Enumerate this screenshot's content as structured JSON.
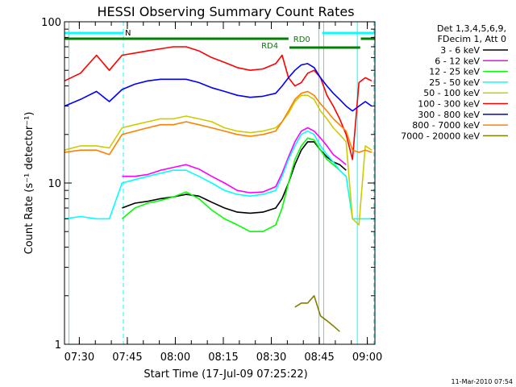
{
  "chart_data": {
    "type": "line",
    "title": "HESSI Observing Summary Count Rates",
    "xlabel": "Start Time (17-Jul-09 07:25:22)",
    "ylabel": "Count Rate (s⁻¹ detector⁻¹)",
    "x_ticks": [
      "07:30",
      "07:45",
      "08:00",
      "08:15",
      "08:30",
      "08:45",
      "09:00"
    ],
    "y_ticks": [
      "1",
      "10",
      "100"
    ],
    "xlim_minutes_after_start": [
      0,
      97
    ],
    "ylim": [
      1,
      100
    ],
    "log_y": true,
    "grid": false,
    "legend_position": "right",
    "legend_header": [
      "Det 1,3,4,5,6,9,",
      "FDecim 1, Att 0"
    ],
    "footer_date": "11-Mar-2010 07:54",
    "x": [
      0,
      5,
      10,
      14,
      18,
      22,
      26,
      30,
      34,
      38,
      42,
      46,
      50,
      54,
      58,
      62,
      66,
      68,
      70,
      72,
      74,
      76,
      78,
      80,
      82,
      84,
      86,
      88,
      90,
      92,
      94,
      96,
      97
    ],
    "series": [
      {
        "name": "3 - 6 keV",
        "color": "#000000",
        "values": [
          null,
          null,
          null,
          null,
          7.0,
          7.5,
          7.7,
          8.0,
          8.2,
          8.5,
          8.3,
          7.6,
          7.0,
          6.6,
          6.5,
          6.6,
          7.0,
          8.0,
          10.0,
          13.0,
          16.0,
          18.0,
          18.0,
          16.0,
          14.5,
          13.5,
          13.0,
          12.0,
          null,
          null,
          null,
          null,
          null
        ]
      },
      {
        "name": "6 - 12 keV",
        "color": "#ff00ff",
        "values": [
          null,
          null,
          null,
          null,
          11.0,
          11.0,
          11.3,
          12.0,
          12.5,
          13.0,
          12.2,
          11.0,
          10.0,
          9.0,
          8.7,
          8.8,
          9.5,
          11.5,
          14.5,
          18.0,
          21.0,
          22.0,
          21.0,
          19.0,
          17.0,
          15.0,
          14.0,
          13.0,
          null,
          null,
          null,
          null,
          null
        ]
      },
      {
        "name": "12 - 25 keV",
        "color": "#00ff00",
        "values": [
          null,
          null,
          null,
          null,
          6.0,
          7.0,
          7.5,
          7.8,
          8.2,
          8.8,
          8.0,
          6.8,
          6.0,
          5.5,
          5.0,
          5.0,
          5.5,
          7.0,
          10.0,
          14.0,
          17.0,
          19.0,
          18.5,
          16.0,
          14.0,
          13.0,
          12.0,
          11.0,
          null,
          null,
          null,
          null,
          null
        ]
      },
      {
        "name": "25 - 50 keV",
        "color": "#00ffff",
        "values": [
          6.0,
          6.2,
          6.0,
          6.0,
          10.0,
          10.5,
          11.0,
          11.5,
          12.0,
          12.0,
          11.0,
          10.0,
          9.0,
          8.5,
          8.3,
          8.5,
          9.0,
          11.0,
          14.0,
          17.0,
          20.0,
          21.0,
          20.0,
          17.0,
          15.0,
          13.5,
          12.0,
          11.0,
          6.0,
          6.0,
          6.0,
          6.0,
          null
        ]
      },
      {
        "name": "50 - 100 keV",
        "color": "#cccc00",
        "values": [
          16.0,
          17.0,
          17.0,
          16.5,
          22.0,
          23.0,
          24.0,
          25.0,
          25.0,
          26.0,
          25.0,
          24.0,
          22.0,
          21.0,
          20.5,
          21.0,
          22.0,
          24.0,
          27.0,
          32.0,
          35.0,
          35.0,
          33.0,
          28.0,
          25.0,
          22.0,
          20.0,
          18.0,
          6.0,
          5.5,
          17.0,
          16.0,
          null
        ]
      },
      {
        "name": "100 - 300 keV",
        "color": "#ff0000",
        "values": [
          43.0,
          48.0,
          62.0,
          50.0,
          62.0,
          64.0,
          66.0,
          68.0,
          70.0,
          70.0,
          66.0,
          60.0,
          56.0,
          52.0,
          50.0,
          51.0,
          55.0,
          62.0,
          45.0,
          40.0,
          42.0,
          48.0,
          50.0,
          45.0,
          35.0,
          30.0,
          25.0,
          20.0,
          14.0,
          42.0,
          45.0,
          43.0,
          null
        ]
      },
      {
        "name": "300 - 800 keV",
        "color": "#0000ff",
        "values": [
          30.0,
          33.0,
          37.0,
          32.0,
          38.0,
          41.0,
          43.0,
          44.0,
          44.0,
          44.0,
          42.0,
          39.0,
          37.0,
          35.0,
          34.0,
          34.5,
          36.0,
          40.0,
          45.0,
          50.0,
          54.0,
          55.0,
          52.0,
          45.0,
          40.0,
          36.0,
          33.0,
          30.0,
          28.0,
          30.0,
          32.0,
          30.0,
          null
        ]
      },
      {
        "name": "800 - 7000 keV",
        "color": "#ff8000",
        "values": [
          15.5,
          16.0,
          16.0,
          15.0,
          20.0,
          21.0,
          22.0,
          23.0,
          23.0,
          24.0,
          23.0,
          22.0,
          21.0,
          20.0,
          19.5,
          20.0,
          21.0,
          24.0,
          28.0,
          33.0,
          36.0,
          37.0,
          35.0,
          31.0,
          28.0,
          25.0,
          23.0,
          21.0,
          16.0,
          15.5,
          16.0,
          15.5,
          null
        ]
      },
      {
        "name": "7000 - 20000 keV",
        "color": "#808000",
        "values": [
          null,
          null,
          null,
          null,
          null,
          null,
          null,
          null,
          null,
          null,
          null,
          null,
          null,
          null,
          null,
          null,
          null,
          null,
          null,
          1.7,
          1.8,
          1.8,
          2.0,
          1.5,
          1.4,
          1.3,
          1.2,
          null,
          null,
          null,
          null,
          null,
          null
        ]
      }
    ],
    "state_labels": [
      "N",
      "RD4",
      "RD0"
    ]
  }
}
